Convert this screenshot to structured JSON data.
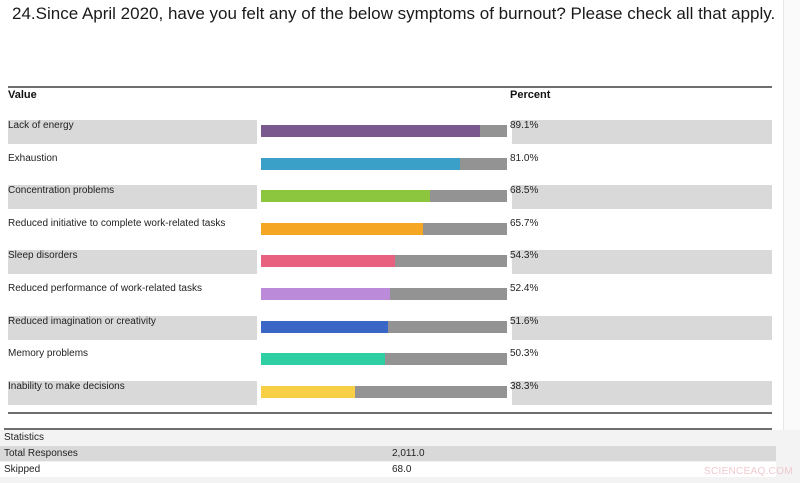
{
  "question": {
    "title": "24.Since April 2020, have you felt any of the below symptoms of burnout? Please check all that apply."
  },
  "table": {
    "headers": {
      "value": "Value",
      "percent": "Percent"
    },
    "rows": [
      {
        "label": "Lack of energy",
        "percent": "89.1%",
        "value": 89.1,
        "color": "#7a5a8e"
      },
      {
        "label": "Exhaustion",
        "percent": "81.0%",
        "value": 81.0,
        "color": "#3aa0c8"
      },
      {
        "label": "Concentration problems",
        "percent": "68.5%",
        "value": 68.5,
        "color": "#8cc63e"
      },
      {
        "label": "Reduced initiative to complete work-related tasks",
        "percent": "65.7%",
        "value": 65.7,
        "color": "#f5a623"
      },
      {
        "label": "Sleep disorders",
        "percent": "54.3%",
        "value": 54.3,
        "color": "#e8617f"
      },
      {
        "label": "Reduced performance of work-related tasks",
        "percent": "52.4%",
        "value": 52.4,
        "color": "#bb8ad8"
      },
      {
        "label": "Reduced imagination or creativity",
        "percent": "51.6%",
        "value": 51.6,
        "color": "#3a67c6"
      },
      {
        "label": "Memory problems",
        "percent": "50.3%",
        "value": 50.3,
        "color": "#2ecfa3"
      },
      {
        "label": "Inability to make decisions",
        "percent": "38.3%",
        "value": 38.3,
        "color": "#f9cf45"
      }
    ]
  },
  "statistics": {
    "heading": "Statistics",
    "rows": [
      {
        "label": "Total Responses",
        "value": "2,011.0"
      },
      {
        "label": "Skipped",
        "value": "68.0"
      }
    ]
  },
  "watermark": "SCIENCEAQ.COM",
  "chart_data": {
    "type": "bar",
    "orientation": "horizontal",
    "title": "24.Since April 2020, have you felt any of the below symptoms of burnout? Please check all that apply.",
    "categories": [
      "Lack of energy",
      "Exhaustion",
      "Concentration problems",
      "Reduced initiative to complete work-related tasks",
      "Sleep disorders",
      "Reduced performance of work-related tasks",
      "Reduced imagination or creativity",
      "Memory problems",
      "Inability to make decisions"
    ],
    "values": [
      89.1,
      81.0,
      68.5,
      65.7,
      54.3,
      52.4,
      51.6,
      50.3,
      38.3
    ],
    "xlabel": "Value",
    "ylabel": "Percent",
    "ylim": [
      0,
      100
    ],
    "colors": [
      "#7a5a8e",
      "#3aa0c8",
      "#8cc63e",
      "#f5a623",
      "#e8617f",
      "#bb8ad8",
      "#3a67c6",
      "#2ecfa3",
      "#f9cf45"
    ],
    "remainder_color": "#939393",
    "grid": false,
    "legend": "none",
    "statistics": {
      "Total Responses": 2011.0,
      "Skipped": 68.0
    }
  }
}
